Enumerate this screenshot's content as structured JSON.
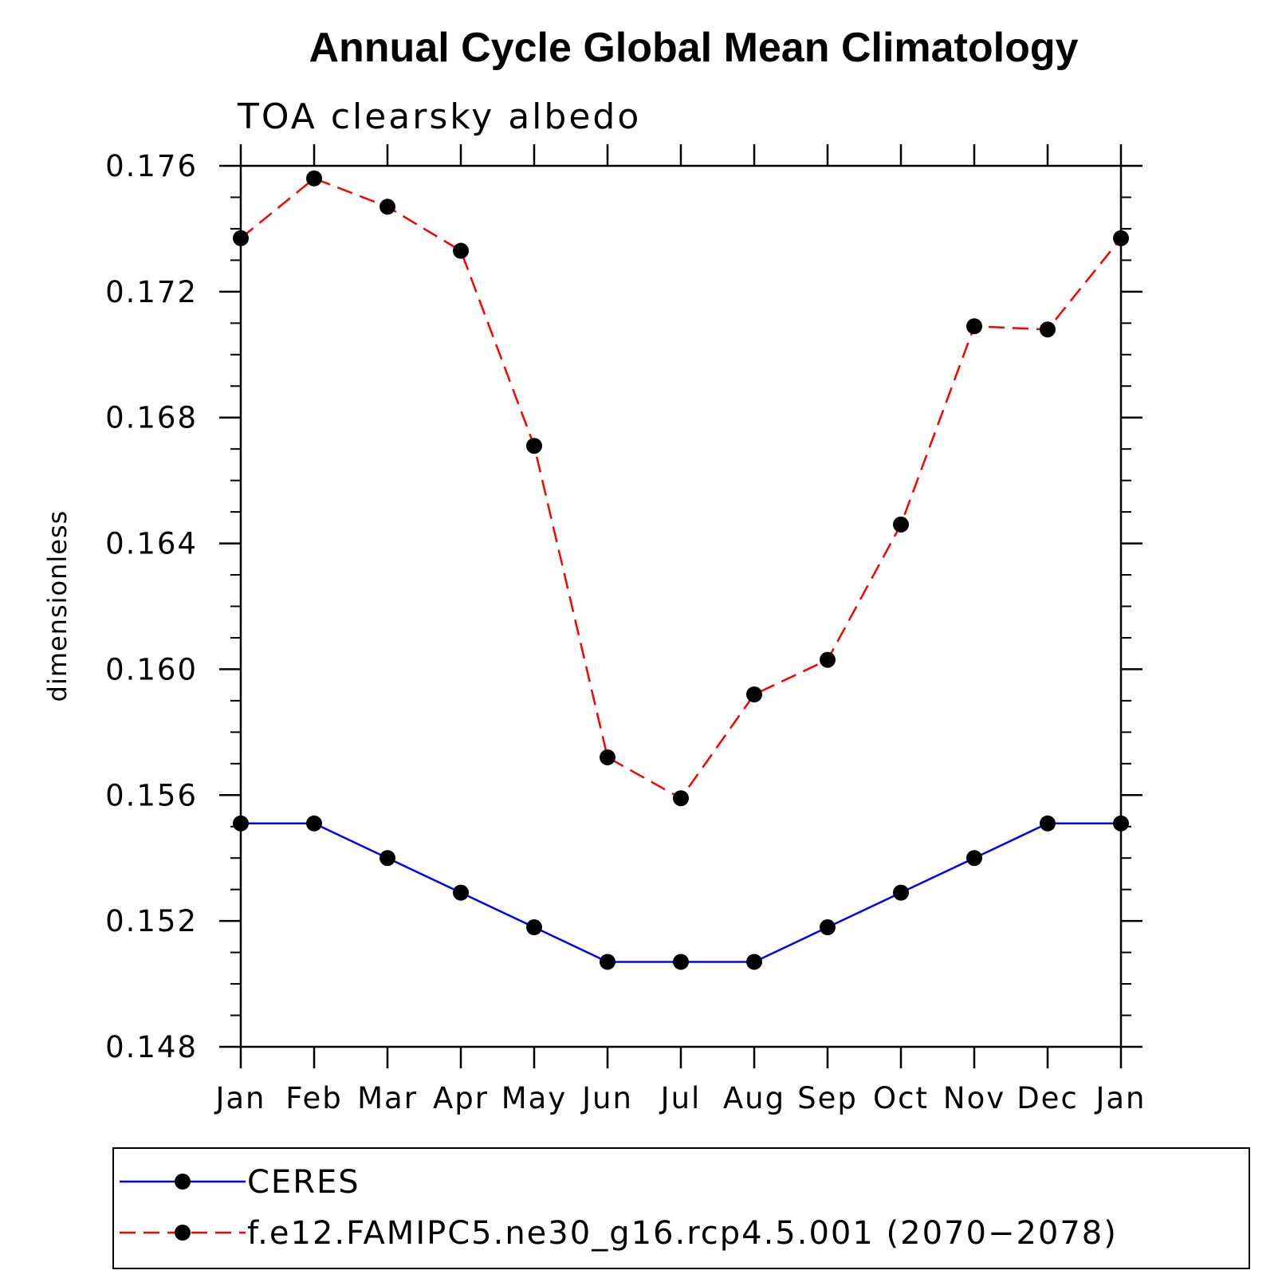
{
  "chart_data": {
    "type": "line",
    "title": "Annual Cycle Global Mean Climatology",
    "subtitle": "TOA clearsky albedo",
    "ylabel": "dimensionless",
    "xlabel": "",
    "categories": [
      "Jan",
      "Feb",
      "Mar",
      "Apr",
      "May",
      "Jun",
      "Jul",
      "Aug",
      "Sep",
      "Oct",
      "Nov",
      "Dec",
      "Jan"
    ],
    "ylim": [
      0.148,
      0.176
    ],
    "yticks": [
      "0.148",
      "0.152",
      "0.156",
      "0.160",
      "0.164",
      "0.168",
      "0.172",
      "0.176"
    ],
    "ytick_values": [
      0.148,
      0.152,
      0.156,
      0.16,
      0.164,
      0.168,
      0.172,
      0.176
    ],
    "minor_tick_step": 0.001,
    "series": [
      {
        "name": "CERES",
        "color": "#0000ff",
        "dashed": false,
        "values": [
          0.1551,
          0.1551,
          0.154,
          0.1529,
          0.1518,
          0.1507,
          0.1507,
          0.1507,
          0.1518,
          0.1529,
          0.154,
          0.1551,
          0.1551
        ]
      },
      {
        "name": "f.e12.FAMIPC5.ne30_g16.rcp4.5.001 (2070−2078)",
        "color": "#ff0000",
        "dashed": true,
        "values": [
          0.1737,
          0.1756,
          0.1747,
          0.1733,
          0.1671,
          0.1572,
          0.1559,
          0.1592,
          0.1603,
          0.1646,
          0.1709,
          0.1708,
          0.1737
        ]
      }
    ],
    "legend_position": "bottom"
  }
}
